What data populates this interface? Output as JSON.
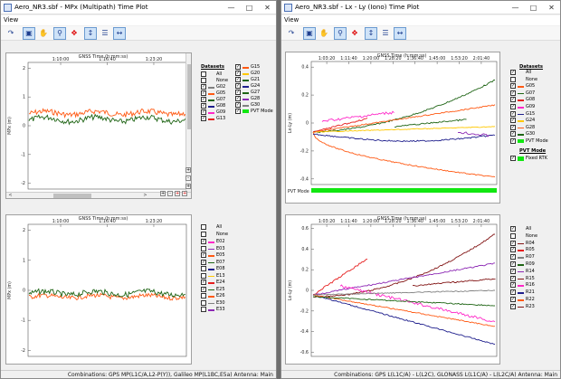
{
  "left_window": {
    "title": "Aero_NR3.sbf - MPx (Multipath) Time Plot",
    "menu": "View",
    "status": "Combinations: GPS MP(L1C/A,L2-P(Y)), Galileo MP(L1BC,E5a)  Antenna: Main",
    "top_plot": {
      "title": "GNSS Time (h:mm:ss)",
      "x_ticks": [
        "1:10:00",
        "1:16:40",
        "1:23:20"
      ],
      "y_ticks": [
        "2",
        "1",
        "0",
        "-1",
        "-2"
      ],
      "y_label": "MPx (m)",
      "legend_header": "Datasets",
      "legend_col1": [
        "All",
        "None",
        "G02",
        "G05",
        "G07",
        "G08",
        "G09",
        "G13"
      ],
      "legend_col2": [
        "G15",
        "G20",
        "G21",
        "G24",
        "G27",
        "G28",
        "G30",
        "PVT Mode"
      ]
    },
    "bottom_plot": {
      "title": "GNSS Time (h:mm:ss)",
      "x_ticks": [
        "1:10:00",
        "1:16:40",
        "1:23:20"
      ],
      "y_ticks": [
        "2",
        "1",
        "0",
        "-1",
        "-2"
      ],
      "y_label": "MPx (m)",
      "legend_col1": [
        "All",
        "None"
      ],
      "legend_col2": [
        "E02",
        "E03",
        "E05",
        "E07",
        "E08",
        "E13",
        "E24",
        "E25",
        "E26",
        "E30",
        "E33"
      ]
    }
  },
  "right_window": {
    "title": "Aero_NR3.sbf - Lx - Ly (Iono) Time Plot",
    "menu": "View",
    "status": "Combinations: GPS L(L1C/A) - L(L2C), GLONASS L(L1C/A) - L(L2C/A)  Antenna: Main",
    "top_plot": {
      "title": "GNSS Time (h:mm:ss)",
      "x_ticks": [
        "1:03:20",
        "1:11:40",
        "1:20:00",
        "1:28:20",
        "1:36:40",
        "1:45:00",
        "1:53:20",
        "2:01:40"
      ],
      "y_ticks": [
        "0.4",
        "0.2",
        "0",
        "-0.2",
        "-0.4"
      ],
      "y_label": "Lx-Ly (m)",
      "pvt_label": "PVT Mode",
      "legend_header": "Datasets",
      "legend": [
        "All",
        "None",
        "G05",
        "G07",
        "G08",
        "G09",
        "G15",
        "G24",
        "G28",
        "G30",
        "PVT Mode"
      ],
      "pvt_header": "PVT Mode",
      "pvt_entry": "Fixed RTK"
    },
    "bottom_plot": {
      "title": "GNSS Time (h:mm:ss)",
      "x_ticks": [
        "1:03:20",
        "1:11:40",
        "1:20:00",
        "1:28:20",
        "1:36:40",
        "1:45:00",
        "1:53:20",
        "2:01:40"
      ],
      "y_ticks": [
        "0.6",
        "0.4",
        "0.2",
        "0",
        "-0.2",
        "-0.4",
        "-0.6"
      ],
      "y_label": "Lx-Ly (m)",
      "legend": [
        "All",
        "None",
        "R04",
        "R05",
        "R07",
        "R09",
        "R14",
        "R15",
        "R16",
        "R21",
        "R22",
        "R23"
      ]
    }
  },
  "colors": {
    "orange": "#ff5a14",
    "darkgreen": "#1e6414",
    "magenta": "#ff28c8",
    "navy": "#1e1e8c",
    "gold": "#ffc800",
    "purple": "#8c28b4",
    "darkred": "#821414",
    "red": "#e61e1e",
    "gray": "#808080",
    "pvtgreen": "#11e711"
  },
  "icons": [
    "pointer-icon",
    "zoom-box-icon",
    "hand-pan-icon",
    "magnify-icon",
    "autoscale-icon",
    "fit-vertical-icon",
    "stack-icon",
    "fit-horizontal-icon"
  ]
}
